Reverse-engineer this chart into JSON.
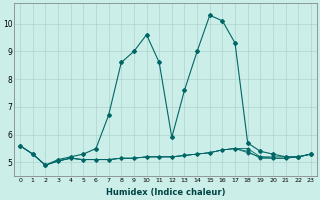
{
  "xlabel": "Humidex (Indice chaleur)",
  "ylabel": "",
  "bg_color": "#cceee8",
  "line_color": "#006666",
  "grid_color": "#aacccc",
  "xlim": [
    -0.5,
    23.5
  ],
  "ylim": [
    4.5,
    10.75
  ],
  "xticks": [
    0,
    1,
    2,
    3,
    4,
    5,
    6,
    7,
    8,
    9,
    10,
    11,
    12,
    13,
    14,
    15,
    16,
    17,
    18,
    19,
    20,
    21,
    22,
    23
  ],
  "yticks": [
    5,
    6,
    7,
    8,
    9,
    10
  ],
  "series": [
    [
      5.6,
      5.3,
      4.9,
      5.1,
      5.2,
      5.3,
      5.5,
      6.7,
      8.6,
      9.0,
      9.6,
      8.6,
      5.9,
      7.6,
      9.0,
      10.3,
      10.1,
      9.3,
      5.7,
      5.4,
      5.3,
      5.2,
      5.2,
      5.3
    ],
    [
      5.6,
      5.3,
      4.9,
      5.05,
      5.15,
      5.1,
      5.1,
      5.1,
      5.15,
      5.15,
      5.2,
      5.2,
      5.2,
      5.25,
      5.3,
      5.35,
      5.45,
      5.5,
      5.5,
      5.2,
      5.2,
      5.2,
      5.2,
      5.3
    ],
    [
      5.6,
      5.3,
      4.9,
      5.05,
      5.15,
      5.1,
      5.1,
      5.1,
      5.15,
      5.15,
      5.2,
      5.2,
      5.2,
      5.25,
      5.3,
      5.35,
      5.45,
      5.5,
      5.35,
      5.2,
      5.15,
      5.15,
      5.2,
      5.3
    ],
    [
      5.6,
      5.3,
      4.9,
      5.05,
      5.15,
      5.1,
      5.1,
      5.1,
      5.15,
      5.15,
      5.2,
      5.2,
      5.2,
      5.25,
      5.3,
      5.35,
      5.45,
      5.5,
      5.4,
      5.15,
      5.15,
      5.15,
      5.2,
      5.3
    ]
  ],
  "xlabel_fontsize": 6.0,
  "xlabel_fontweight": "bold",
  "xlabel_color": "#004444",
  "xtick_fontsize": 4.5,
  "ytick_fontsize": 5.5,
  "marker_size_main": 2.0,
  "marker_size_secondary": 1.5,
  "lw_main": 0.8,
  "lw_secondary": 0.6
}
